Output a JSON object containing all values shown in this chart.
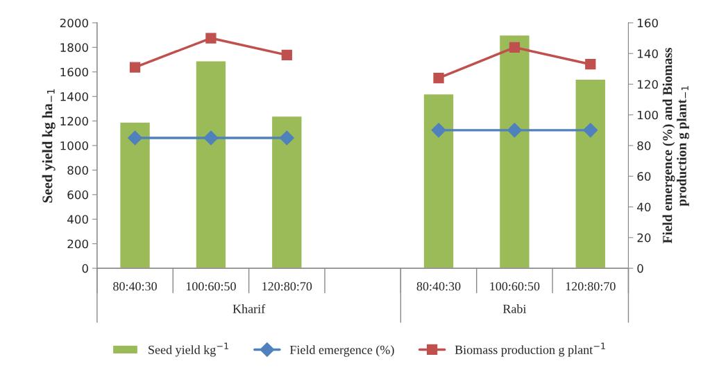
{
  "chart_data": {
    "type": "bar",
    "categories": [
      "80:40:30",
      "100:60:50",
      "120:80:70",
      null,
      "80:40:30",
      "100:60:50",
      "120:80:70"
    ],
    "ylabel": "Seed yield kg ha$_{−1}$",
    "y2label": "Field emergence (%) and Biomass production g plant$_{−1}$",
    "ylim": [
      0,
      2000
    ],
    "yticks": [
      0,
      200,
      400,
      600,
      800,
      1000,
      1200,
      1400,
      1600,
      1800,
      2000
    ],
    "y2lim": [
      0,
      160
    ],
    "y2ticks": [
      0,
      20,
      40,
      60,
      80,
      100,
      120,
      140,
      160
    ],
    "series": [
      {
        "name": "Seed yield kg$^{−1}$",
        "color": "#9bbb59",
        "values": [
          1190,
          1690,
          1240,
          null,
          1420,
          1900,
          1540
        ]
      },
      {
        "name": "Field emergence (%)",
        "type": "line",
        "axis": "y2",
        "marker": "diamond",
        "color": "#4f81bd",
        "values": [
          85,
          85,
          85,
          null,
          90,
          90,
          90
        ]
      },
      {
        "name": "Biomass production g plant$^{−1}$",
        "type": "line",
        "axis": "y2",
        "marker": "square",
        "color": "#c0504d",
        "values": [
          131,
          150,
          139,
          null,
          124,
          144,
          133
        ]
      }
    ],
    "annotations": [
      "Kharif",
      "Rabi"
    ],
    "legend": "bottom",
    "grid": false
  }
}
